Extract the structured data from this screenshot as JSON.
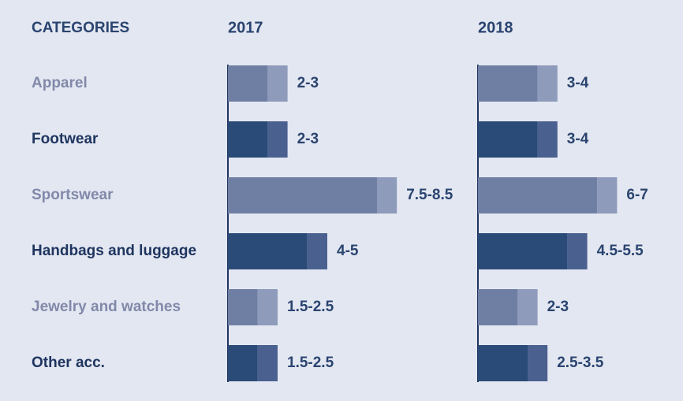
{
  "chart_data": {
    "type": "bar",
    "subtype": "range-bar",
    "categories_header": "CATEGORIES",
    "categories": [
      "Apparel",
      "Footwear",
      "Sportswear",
      "Handbags and luggage",
      "Jewelry and watches",
      "Other acc."
    ],
    "series": [
      {
        "name": "2017",
        "low": [
          2,
          2,
          7.5,
          4,
          1.5,
          1.5
        ],
        "high": [
          3,
          3,
          8.5,
          5,
          2.5,
          2.5
        ],
        "labels": [
          "2-3",
          "2-3",
          "7.5-8.5",
          "4-5",
          "1.5-2.5",
          "1.5-2.5"
        ]
      },
      {
        "name": "2018",
        "low": [
          3,
          3,
          6,
          4.5,
          2,
          2.5
        ],
        "high": [
          4,
          4,
          7,
          5.5,
          3,
          3.5
        ],
        "labels": [
          "3-4",
          "3-4",
          "6-7",
          "4.5-5.5",
          "2-3",
          "2.5-3.5"
        ]
      }
    ],
    "x_range": [
      0,
      8.5
    ],
    "row_styles": [
      "light",
      "dark",
      "light",
      "dark",
      "light",
      "dark"
    ],
    "colors": {
      "background": "#e3e7f1",
      "header_text": "#2a4470",
      "light_text": "#8189a9",
      "dark_text": "#1f3560",
      "light_bar": "#6f7fa4",
      "light_bar_range": "#8e9bbb",
      "dark_bar": "#2a4a78",
      "dark_bar_range": "#4a6190",
      "value_text": "#2a4470",
      "axis_line": "#1f3560"
    }
  }
}
